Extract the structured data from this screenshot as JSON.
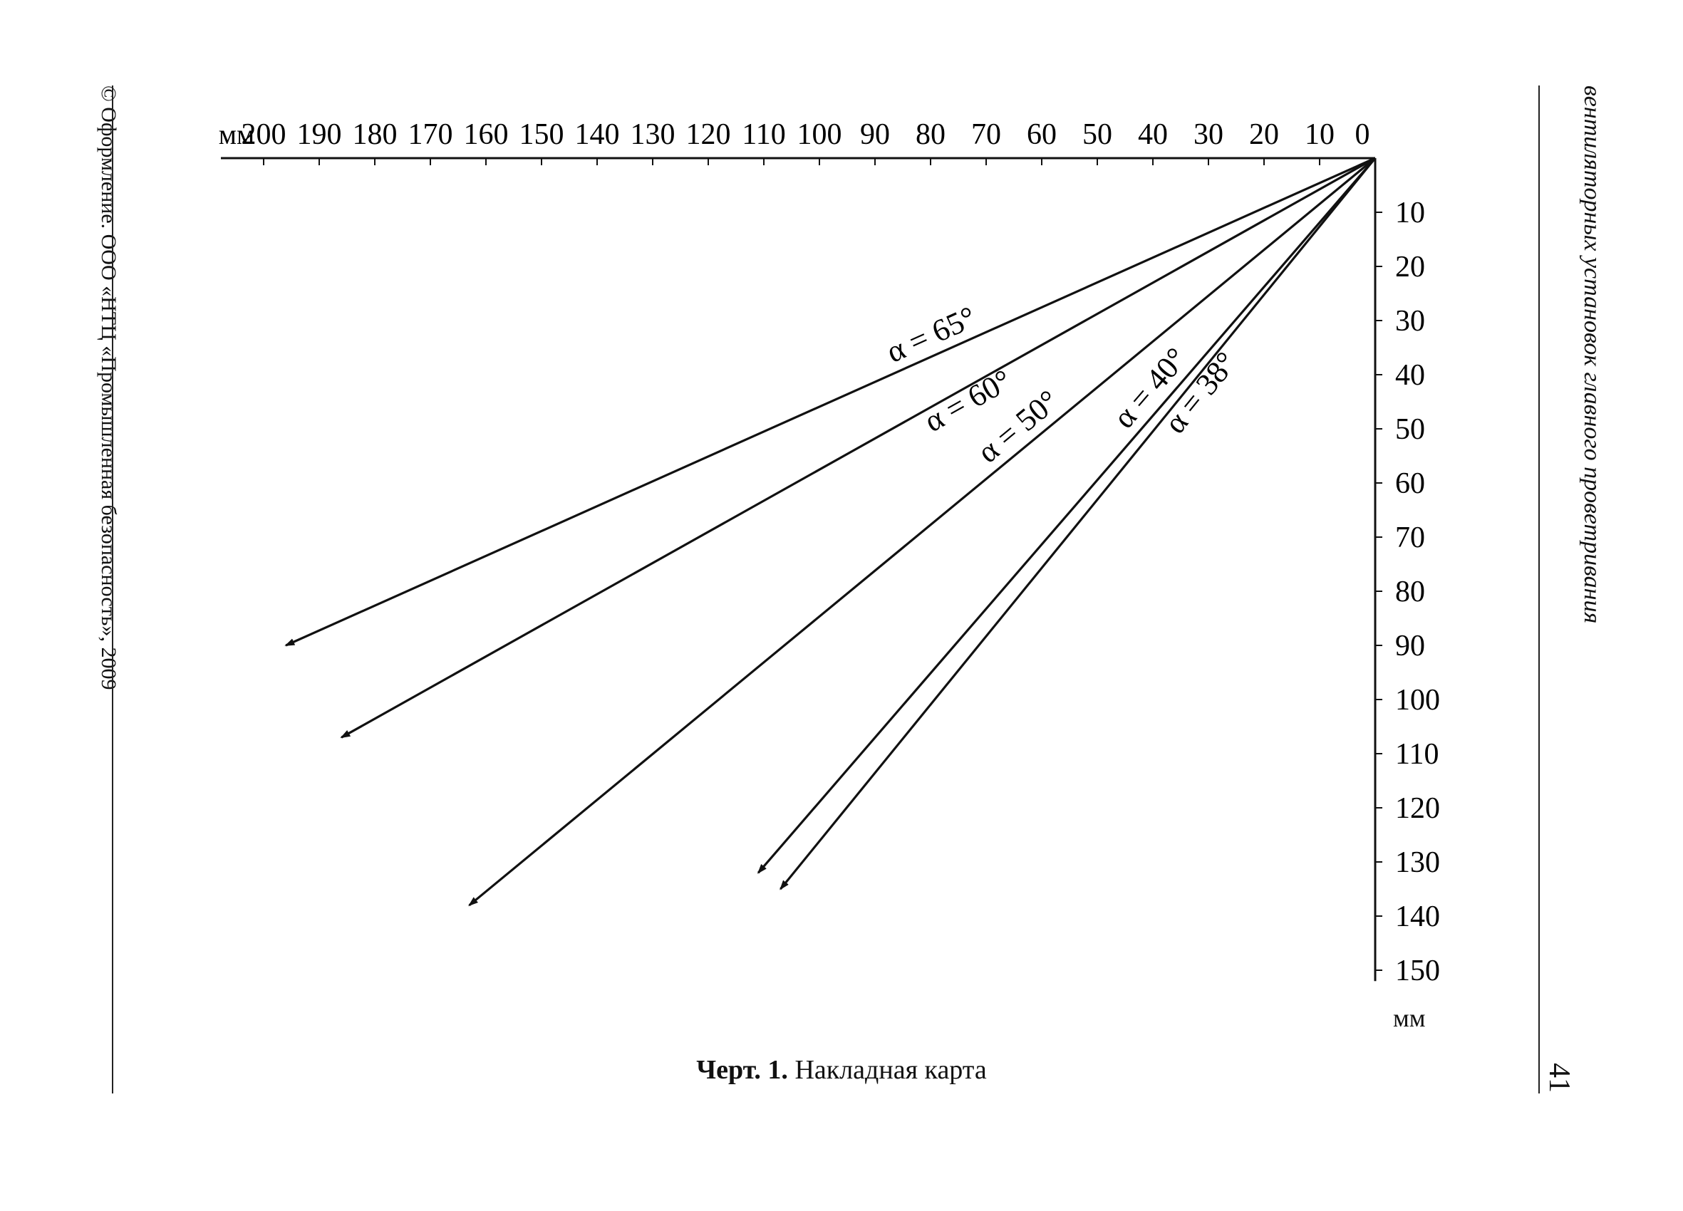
{
  "header": {
    "left_margin": "© Оформление. ООО «НТЦ «Промышленная безопасность», 2009",
    "right_margin": "вентиляторных установок главного проветривания",
    "page_number": "41"
  },
  "diagram": {
    "x_unit": "мм",
    "x_ticks": [
      "0",
      "10",
      "20",
      "30",
      "40",
      "50",
      "60",
      "70",
      "80",
      "90",
      "100",
      "110",
      "120",
      "130",
      "140",
      "150",
      "160",
      "170",
      "180",
      "190",
      "200"
    ],
    "y_unit": "мм",
    "y_ticks": [
      "10",
      "20",
      "30",
      "40",
      "50",
      "60",
      "70",
      "80",
      "90",
      "100",
      "110",
      "120",
      "130",
      "140",
      "150"
    ],
    "rays": [
      {
        "label": "α = 65°",
        "end_x_mm": 196,
        "end_y_mm": 90
      },
      {
        "label": "α = 60°",
        "end_x_mm": 186,
        "end_y_mm": 107
      },
      {
        "label": "α = 50°",
        "end_x_mm": 163,
        "end_y_mm": 138
      },
      {
        "label": "α = 40°",
        "end_x_mm": 111,
        "end_y_mm": 132
      },
      {
        "label": "α = 38°",
        "end_x_mm": 107,
        "end_y_mm": 135
      }
    ]
  },
  "caption": {
    "bold": "Черт. 1.",
    "text": "Накладная карта"
  }
}
